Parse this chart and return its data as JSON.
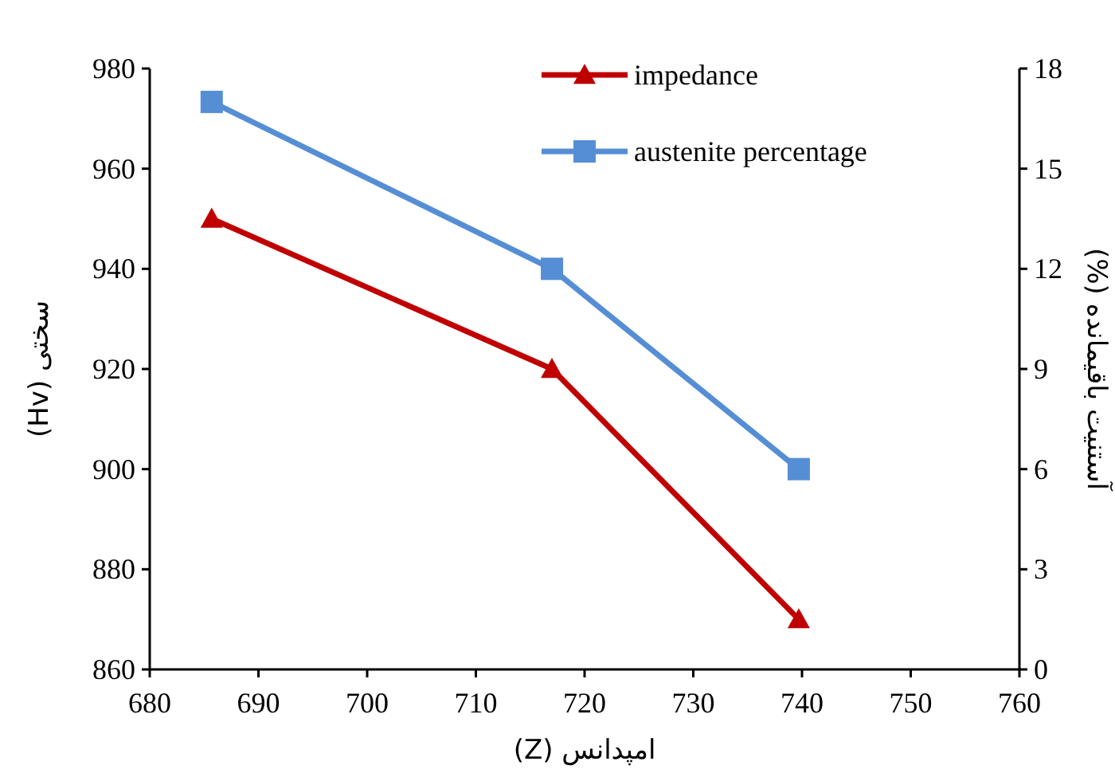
{
  "chart_data": {
    "type": "line",
    "x": [
      685.7,
      717,
      739.7
    ],
    "xlabel": "امپدانس (Z)",
    "ylabel": "سختی (Hv)",
    "y2label": "آستنیت باقیمانده (%)",
    "xlim": [
      680,
      760
    ],
    "xticks": [
      680,
      690,
      700,
      710,
      720,
      730,
      740,
      750,
      760
    ],
    "ylim": [
      860,
      980
    ],
    "yticks": [
      860,
      880,
      900,
      920,
      940,
      960,
      980
    ],
    "y2lim": [
      0,
      18
    ],
    "y2ticks": [
      0,
      3,
      6,
      9,
      12,
      15,
      18
    ],
    "legend": "top right",
    "series": [
      {
        "name": "impedance",
        "color": "#c00000",
        "marker": "triangle",
        "values": [
          950,
          920,
          870
        ]
      },
      {
        "name": "austenite percentage",
        "color": "#558ed5",
        "marker": "square",
        "axis": "y2",
        "values": [
          17,
          12,
          6
        ]
      }
    ]
  }
}
